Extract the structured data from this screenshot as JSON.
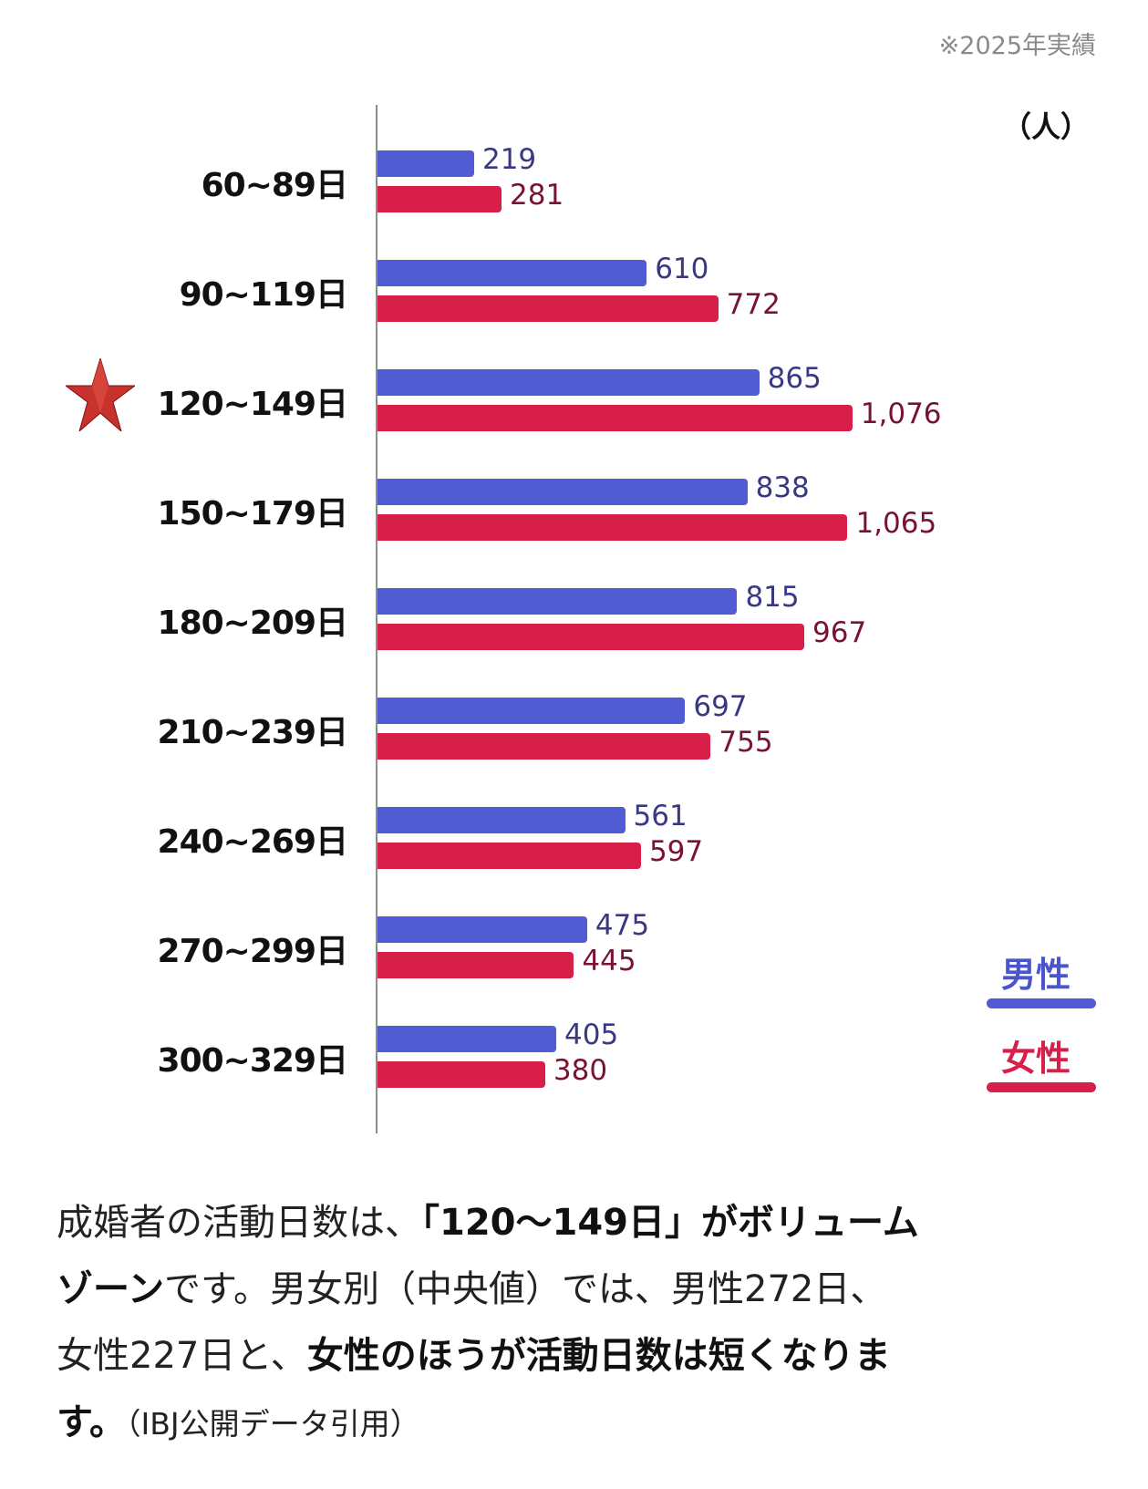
{
  "note": "※2025年実績",
  "chart_data": {
    "type": "bar",
    "orientation": "horizontal",
    "unit_label": "（人）",
    "categories": [
      "60~89日",
      "90~119日",
      "120~149日",
      "150~179日",
      "180~209日",
      "210~239日",
      "240~269日",
      "270~299日",
      "300~329日"
    ],
    "highlight_category": "120~149日",
    "series": [
      {
        "name": "男性",
        "color": "#505bd4",
        "label_color": "#3a3880",
        "values": [
          219,
          610,
          865,
          838,
          815,
          697,
          561,
          475,
          405
        ]
      },
      {
        "name": "女性",
        "color": "#d81f4a",
        "label_color": "#7a1232",
        "values": [
          281,
          772,
          1076,
          1065,
          967,
          755,
          597,
          445,
          380
        ]
      }
    ],
    "value_labels": {
      "男性": [
        "219",
        "610",
        "865",
        "838",
        "815",
        "697",
        "561",
        "475",
        "405"
      ],
      "女性": [
        "281",
        "772",
        "1,076",
        "1,065",
        "967",
        "755",
        "597",
        "445",
        "380"
      ]
    },
    "xlim": [
      0,
      1100
    ],
    "legend_position": "bottom-right"
  },
  "paragraph": {
    "l1_a": "成婚者の活動日数は、",
    "l1_b": "「120〜149日」がボリューム",
    "l2_a": "ゾーン",
    "l2_b": "です。男女別（中央値）では、男性272日、",
    "l3_a": "女性227日と、",
    "l3_b": "女性のほうが活動日数は短くなりま",
    "l4_a": "す。",
    "l4_b": "（IBJ公開データ引用）"
  }
}
